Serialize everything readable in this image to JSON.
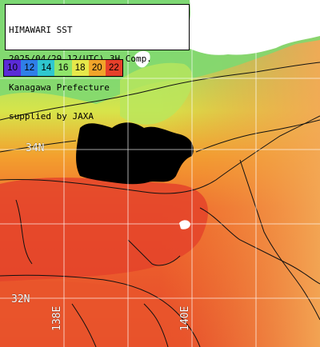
{
  "header": {
    "line1": "HIMAWARI SST",
    "line2": "2025/04/29 12(UTC) 3H Comp.",
    "line3": "Kanagawa Prefecture",
    "line4": "supplied by JAXA"
  },
  "legend": {
    "labels": [
      "10",
      "12",
      "14",
      "16",
      "18",
      "20",
      "22"
    ],
    "colors": [
      "#5a2bd6",
      "#2f7fe8",
      "#2fc7cf",
      "#8fe46a",
      "#e6e84a",
      "#f1a42a",
      "#e6402a"
    ]
  },
  "axes": {
    "lat_labels": [
      {
        "text": "34N"
      },
      {
        "text": "32N"
      }
    ],
    "lon_labels": [
      {
        "text": "138E"
      },
      {
        "text": "140E"
      }
    ]
  },
  "colors": {
    "land": "#ffffff",
    "cloud": "#000000",
    "sea_cool": "#9fdc74",
    "sea_warm": "#f08a34",
    "sea_hot": "#e24a2a",
    "sea_far": "#f3a24a",
    "grid": "#ffffff",
    "contour": "#111111"
  }
}
